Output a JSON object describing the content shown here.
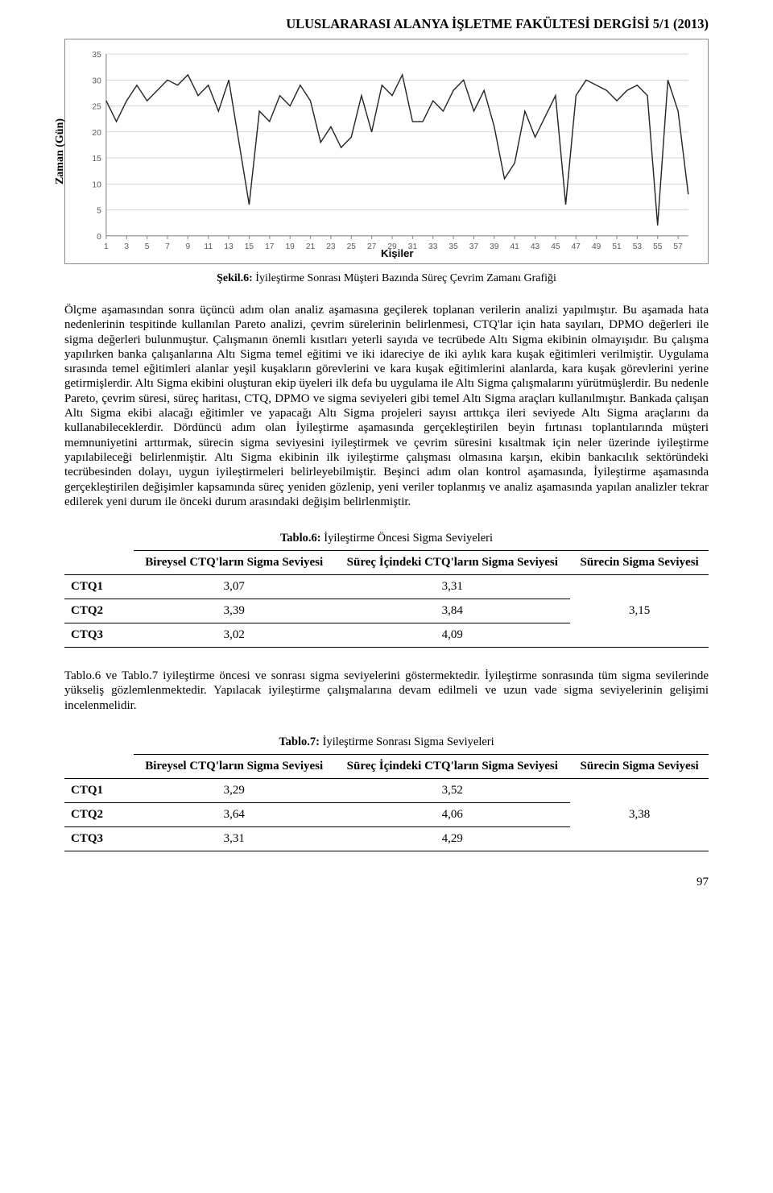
{
  "header": {
    "journal_title": "ULUSLARARASI ALANYA İŞLETME FAKÜLTESİ DERGİSİ 5/1 (2013)"
  },
  "chart": {
    "type": "line",
    "y_axis_label": "Zaman (Gün)",
    "x_axis_label": "Kişiler",
    "ylim": [
      0,
      35
    ],
    "ytick_step": 5,
    "yticks": [
      0,
      5,
      10,
      15,
      20,
      25,
      30,
      35
    ],
    "x_ticks": [
      1,
      3,
      5,
      7,
      9,
      11,
      13,
      15,
      17,
      19,
      21,
      23,
      25,
      27,
      29,
      31,
      33,
      35,
      37,
      39,
      41,
      43,
      45,
      47,
      49,
      51,
      53,
      55,
      57
    ],
    "line_color": "#262626",
    "line_width": 1.4,
    "grid_color": "#bfbfbf",
    "grid_width": 0.6,
    "background_color": "#ffffff",
    "tick_font_size": 10,
    "values": [
      26,
      22,
      26,
      29,
      26,
      28,
      30,
      29,
      31,
      27,
      29,
      24,
      30,
      18,
      6,
      24,
      22,
      27,
      25,
      29,
      26,
      18,
      21,
      17,
      19,
      27,
      20,
      29,
      27,
      31,
      22,
      22,
      26,
      24,
      28,
      30,
      24,
      28,
      21,
      11,
      14,
      24,
      19,
      23,
      27,
      6,
      27,
      30,
      29,
      28,
      26,
      28,
      29,
      27,
      2,
      30,
      24,
      8
    ]
  },
  "chart_caption": {
    "label": "Şekil.6:",
    "text": " İyileştirme Sonrası Müşteri Bazında Süreç Çevrim Zamanı Grafiği"
  },
  "body_paragraph_1": "Ölçme aşamasından sonra üçüncü adım olan analiz aşamasına geçilerek toplanan verilerin analizi yapılmıştır. Bu aşamada hata nedenlerinin tespitinde kullanılan Pareto analizi, çevrim sürelerinin belirlenmesi, CTQ'lar için hata sayıları, DPMO değerleri ile sigma değerleri bulunmuştur. Çalışmanın önemli kısıtları yeterli sayıda ve tecrübede Altı Sigma ekibinin olmayışıdır. Bu çalışma yapılırken banka çalışanlarına Altı Sigma temel eğitimi ve iki idareciye de iki aylık kara kuşak eğitimleri verilmiştir. Uygulama sırasında temel eğitimleri alanlar yeşil kuşakların görevlerini ve kara kuşak eğitimlerini alanlarda, kara kuşak görevlerini yerine getirmişlerdir. Altı Sigma ekibini oluşturan ekip üyeleri ilk defa bu uygulama ile Altı Sigma çalışmalarını yürütmüşlerdir. Bu nedenle Pareto, çevrim süresi, süreç haritası, CTQ, DPMO ve sigma seviyeleri gibi temel Altı Sigma araçları kullanılmıştır. Bankada çalışan Altı Sigma ekibi alacağı eğitimler ve yapacağı Altı Sigma projeleri sayısı arttıkça ileri seviyede Altı Sigma araçlarını da kullanabileceklerdir. Dördüncü adım olan İyileştirme aşamasında gerçekleştirilen beyin fırtınası toplantılarında müşteri memnuniyetini arttırmak, sürecin sigma seviyesini iyileştirmek ve çevrim süresini kısaltmak için neler üzerinde iyileştirme yapılabileceği belirlenmiştir. Altı Sigma ekibinin ilk iyileştirme çalışması olmasına karşın, ekibin bankacılık sektöründeki tecrübesinden dolayı, uygun iyileştirmeleri belirleyebilmiştir. Beşinci adım olan kontrol aşamasında, İyileştirme aşamasında gerçekleştirilen değişimler kapsamında süreç yeniden gözlenip, yeni veriler toplanmış ve analiz aşamasında yapılan analizler tekrar edilerek yeni durum ile önceki durum arasındaki değişim belirlenmiştir.",
  "table6": {
    "caption_label": "Tablo.6:",
    "caption_text": " İyileştirme Öncesi Sigma Seviyeleri",
    "columns": [
      "Bireysel CTQ'ların Sigma Seviyesi",
      "Süreç İçindeki CTQ'ların Sigma Seviyesi",
      "Sürecin Sigma Seviyesi"
    ],
    "rows": [
      {
        "label": "CTQ1",
        "c1": "3,07",
        "c2": "3,31"
      },
      {
        "label": "CTQ2",
        "c1": "3,39",
        "c2": "3,84"
      },
      {
        "label": "CTQ3",
        "c1": "3,02",
        "c2": "4,09"
      }
    ],
    "process_sigma": "3,15"
  },
  "body_paragraph_2": "Tablo.6 ve Tablo.7 iyileştirme öncesi ve sonrası sigma seviyelerini göstermektedir. İyileştirme sonrasında tüm sigma sevilerinde yükseliş gözlemlenmektedir. Yapılacak iyileştirme çalışmalarına devam edilmeli ve uzun vade sigma seviyelerinin gelişimi incelenmelidir.",
  "table7": {
    "caption_label": "Tablo.7:",
    "caption_text": " İyileştirme Sonrası Sigma Seviyeleri",
    "columns": [
      "Bireysel CTQ'ların Sigma Seviyesi",
      "Süreç İçindeki CTQ'ların Sigma Seviyesi",
      "Sürecin Sigma Seviyesi"
    ],
    "rows": [
      {
        "label": "CTQ1",
        "c1": "3,29",
        "c2": "3,52"
      },
      {
        "label": "CTQ2",
        "c1": "3,64",
        "c2": "4,06"
      },
      {
        "label": "CTQ3",
        "c1": "3,31",
        "c2": "4,29"
      }
    ],
    "process_sigma": "3,38"
  },
  "page_number": "97"
}
